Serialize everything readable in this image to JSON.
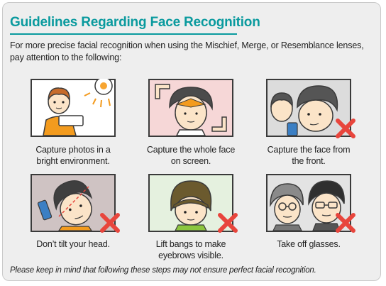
{
  "title": "Guidelines Regarding Face Recognition",
  "intro": "For more precise facial recognition when using the Mischief, Merge, or Resemblance lenses, pay attention to the following:",
  "tips": [
    {
      "caption": "Capture photos in a bright environment.",
      "status": "do",
      "icon": "bright-light-icon"
    },
    {
      "caption": "Capture the whole face on screen.",
      "status": "do",
      "icon": "whole-face-frame-icon"
    },
    {
      "caption": "Capture the face from the front.",
      "status": "dont",
      "icon": "side-view-face-icon"
    },
    {
      "caption": "Don’t tilt your head.",
      "status": "dont",
      "icon": "tilted-head-icon"
    },
    {
      "caption": "Lift bangs to make eyebrows visible.",
      "status": "dont",
      "icon": "bangs-covering-eyebrows-icon"
    },
    {
      "caption": "Take off glasses.",
      "status": "dont",
      "icon": "glasses-icon"
    }
  ],
  "footnote": "Please keep in mind that following these steps may not ensure perfect facial recognition.",
  "colors": {
    "accent": "#0a9a9e",
    "cross": "#e8453c",
    "tile_border": "#3a3a3a"
  }
}
